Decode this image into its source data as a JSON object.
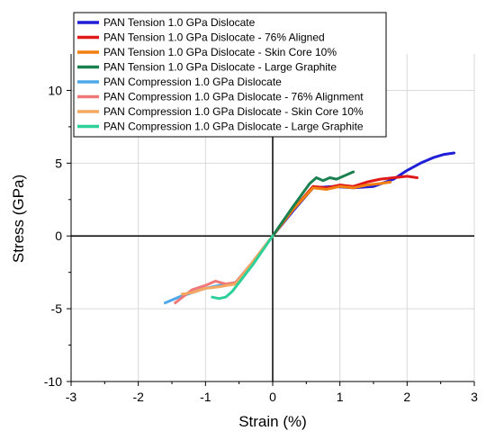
{
  "chart_data": {
    "type": "line",
    "xlabel": "Strain (%)",
    "ylabel": "Stress (GPa)",
    "xlim": [
      -3,
      3
    ],
    "ylim": [
      -10,
      12.5
    ],
    "xticks": [
      -3,
      -2,
      -1,
      0,
      1,
      2,
      3
    ],
    "yticks": [
      -10,
      -5,
      0,
      5,
      10
    ],
    "grid": true,
    "legend_position": "top-left",
    "series": [
      {
        "name": "PAN Tension 1.0 GPa Dislocate",
        "color": "#1f1fd6",
        "x": [
          0,
          0.3,
          0.6,
          0.9,
          1.2,
          1.5,
          1.8,
          2.0,
          2.2,
          2.4,
          2.55,
          2.7
        ],
        "y": [
          0,
          1.7,
          3.3,
          3.4,
          3.3,
          3.4,
          3.9,
          4.5,
          5.0,
          5.4,
          5.6,
          5.7
        ]
      },
      {
        "name": "PAN Tension 1.0 GPa Dislocate - 76% Aligned",
        "color": "#e01818",
        "x": [
          0,
          0.3,
          0.6,
          0.8,
          1.0,
          1.2,
          1.4,
          1.6,
          1.8,
          2.0,
          2.15
        ],
        "y": [
          0,
          1.8,
          3.4,
          3.3,
          3.5,
          3.4,
          3.7,
          3.9,
          4.0,
          4.1,
          4.0
        ]
      },
      {
        "name": "PAN Tension 1.0 GPa Dislocate - Skin Core 10%",
        "color": "#f07e10",
        "x": [
          0,
          0.3,
          0.6,
          0.8,
          1.0,
          1.2,
          1.4,
          1.6,
          1.75
        ],
        "y": [
          0,
          1.8,
          3.3,
          3.2,
          3.4,
          3.3,
          3.5,
          3.6,
          3.7
        ]
      },
      {
        "name": "PAN Tension 1.0 GPa Dislocate - Large Graphite",
        "color": "#1a8050",
        "x": [
          0,
          0.3,
          0.55,
          0.65,
          0.75,
          0.85,
          0.95,
          1.05,
          1.2
        ],
        "y": [
          0,
          2.0,
          3.6,
          4.0,
          3.8,
          4.0,
          3.9,
          4.1,
          4.4
        ]
      },
      {
        "name": "PAN Compression 1.0 GPa Dislocate",
        "color": "#4fa8e8",
        "x": [
          0,
          -0.3,
          -0.55,
          -0.8,
          -1.0,
          -1.2,
          -1.4,
          -1.6
        ],
        "y": [
          0,
          -1.8,
          -3.2,
          -3.4,
          -3.6,
          -3.9,
          -4.2,
          -4.6
        ]
      },
      {
        "name": "PAN Compression 1.0 GPa Dislocate - 76% Alignment",
        "color": "#f07878",
        "x": [
          0,
          -0.3,
          -0.55,
          -0.7,
          -0.85,
          -1.0,
          -1.2,
          -1.45
        ],
        "y": [
          0,
          -1.8,
          -3.2,
          -3.3,
          -3.1,
          -3.4,
          -3.7,
          -4.6
        ]
      },
      {
        "name": "PAN Compression 1.0 GPa Dislocate - Skin Core 10%",
        "color": "#f5a860",
        "x": [
          0,
          -0.3,
          -0.55,
          -0.8,
          -1.0,
          -1.2,
          -1.35
        ],
        "y": [
          0,
          -1.8,
          -3.3,
          -3.5,
          -3.6,
          -3.9,
          -4.0
        ]
      },
      {
        "name": "PAN Compression 1.0 GPa Dislocate - Large Graphite",
        "color": "#2ed09a",
        "x": [
          0,
          -0.3,
          -0.6,
          -0.7,
          -0.8,
          -0.9
        ],
        "y": [
          0,
          -2.0,
          -3.8,
          -4.2,
          -4.3,
          -4.2
        ]
      }
    ]
  }
}
